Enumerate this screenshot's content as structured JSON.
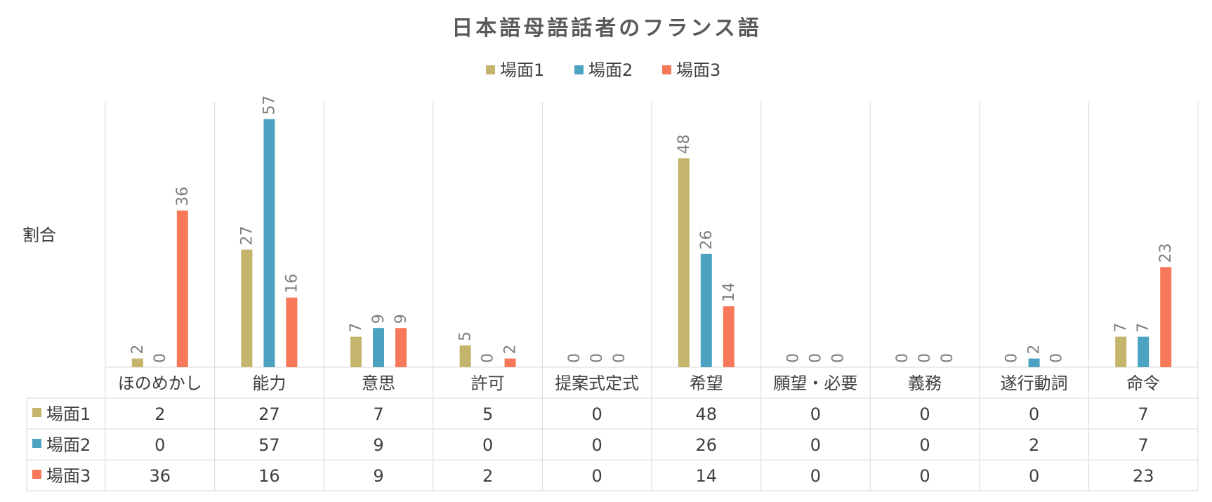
{
  "chart_data": {
    "type": "bar",
    "title": "日本語母語話者のフランス語",
    "ylabel": "割合",
    "xlabel": "",
    "legend_position": "top",
    "ylim": [
      0,
      60
    ],
    "grid": true,
    "categories": [
      "ほのめかし",
      "能力",
      "意思",
      "許可",
      "提案式定式",
      "希望",
      "願望・必要",
      "義務",
      "遂行動詞",
      "命令"
    ],
    "series": [
      {
        "name": "場面1",
        "color": "#c4b46c",
        "values": [
          2,
          27,
          7,
          5,
          0,
          48,
          0,
          0,
          0,
          7
        ]
      },
      {
        "name": "場面2",
        "color": "#4ba3c1",
        "values": [
          0,
          57,
          9,
          0,
          0,
          26,
          0,
          0,
          2,
          7
        ]
      },
      {
        "name": "場面3",
        "color": "#f8795a",
        "values": [
          36,
          16,
          9,
          2,
          0,
          14,
          0,
          0,
          0,
          23
        ]
      }
    ]
  }
}
